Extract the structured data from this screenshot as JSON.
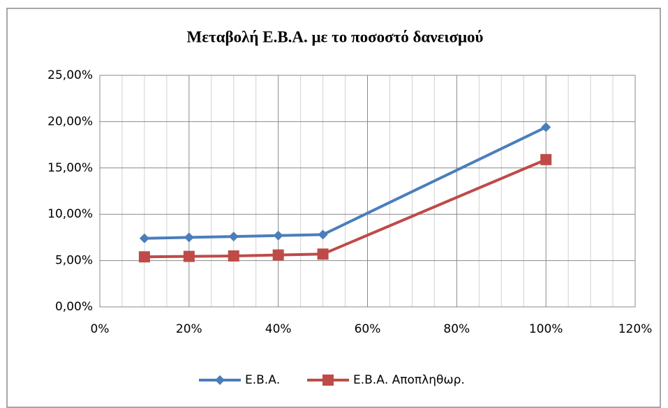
{
  "chart_data": {
    "type": "line",
    "title": "Μεταβολή Ε.Β.Α. με το ποσοστό δανεισμού",
    "x": [
      10,
      20,
      30,
      40,
      50,
      100
    ],
    "series": [
      {
        "name": "Ε.Β.Α.",
        "color": "#4a7ebb",
        "marker": "diamond",
        "values": [
          7.4,
          7.5,
          7.6,
          7.7,
          7.8,
          19.4
        ]
      },
      {
        "name": "Ε.Β.Α. Αποπληθωρ.",
        "color": "#be4b48",
        "marker": "square",
        "values": [
          5.4,
          5.45,
          5.5,
          5.6,
          5.7,
          15.9
        ]
      }
    ],
    "xlim": [
      0,
      120
    ],
    "xticks": [
      {
        "value": 0,
        "label": "0%"
      },
      {
        "value": 20,
        "label": "20%"
      },
      {
        "value": 40,
        "label": "40%"
      },
      {
        "value": 60,
        "label": "60%"
      },
      {
        "value": 80,
        "label": "80%"
      },
      {
        "value": 100,
        "label": "100%"
      },
      {
        "value": 120,
        "label": "120%"
      }
    ],
    "ylim": [
      0,
      25
    ],
    "yticks": [
      {
        "value": 0,
        "label": "0,00%"
      },
      {
        "value": 5,
        "label": "5,00%"
      },
      {
        "value": 10,
        "label": "10,00%"
      },
      {
        "value": 15,
        "label": "15,00%"
      },
      {
        "value": 20,
        "label": "20,00%"
      },
      {
        "value": 25,
        "label": "25,00%"
      }
    ],
    "grid": true,
    "minor_grid_x": true,
    "legend": "bottom"
  }
}
